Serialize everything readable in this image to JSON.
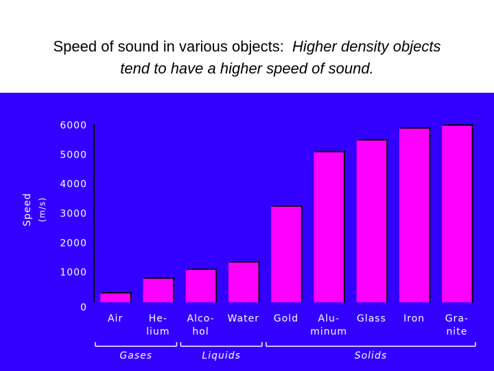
{
  "chart_data": {
    "type": "bar",
    "title": "Speed of sound in various objects:",
    "subtitle": "Higher density objects tend to have a higher speed of sound.",
    "ylabel": "Speed",
    "ylabel_units": "(m/s)",
    "categories": [
      "Air",
      "He-\nlium",
      "Alco-\nhol",
      "Water",
      "Gold",
      "Alu-\nminum",
      "Glass",
      "Iron",
      "Gra-\nnite"
    ],
    "values": [
      300,
      800,
      1100,
      1350,
      3250,
      5100,
      5500,
      5900,
      6000
    ],
    "color": "#ff00ff",
    "groups": [
      {
        "label": "Gases",
        "start": 0,
        "end": 1
      },
      {
        "label": "Liquids",
        "start": 2,
        "end": 3
      },
      {
        "label": "Solids",
        "start": 4,
        "end": 8
      }
    ],
    "ylim": [
      0,
      6000
    ],
    "yticks": [
      0,
      1000,
      2000,
      3000,
      4000,
      5000,
      6000
    ],
    "grid": false
  }
}
